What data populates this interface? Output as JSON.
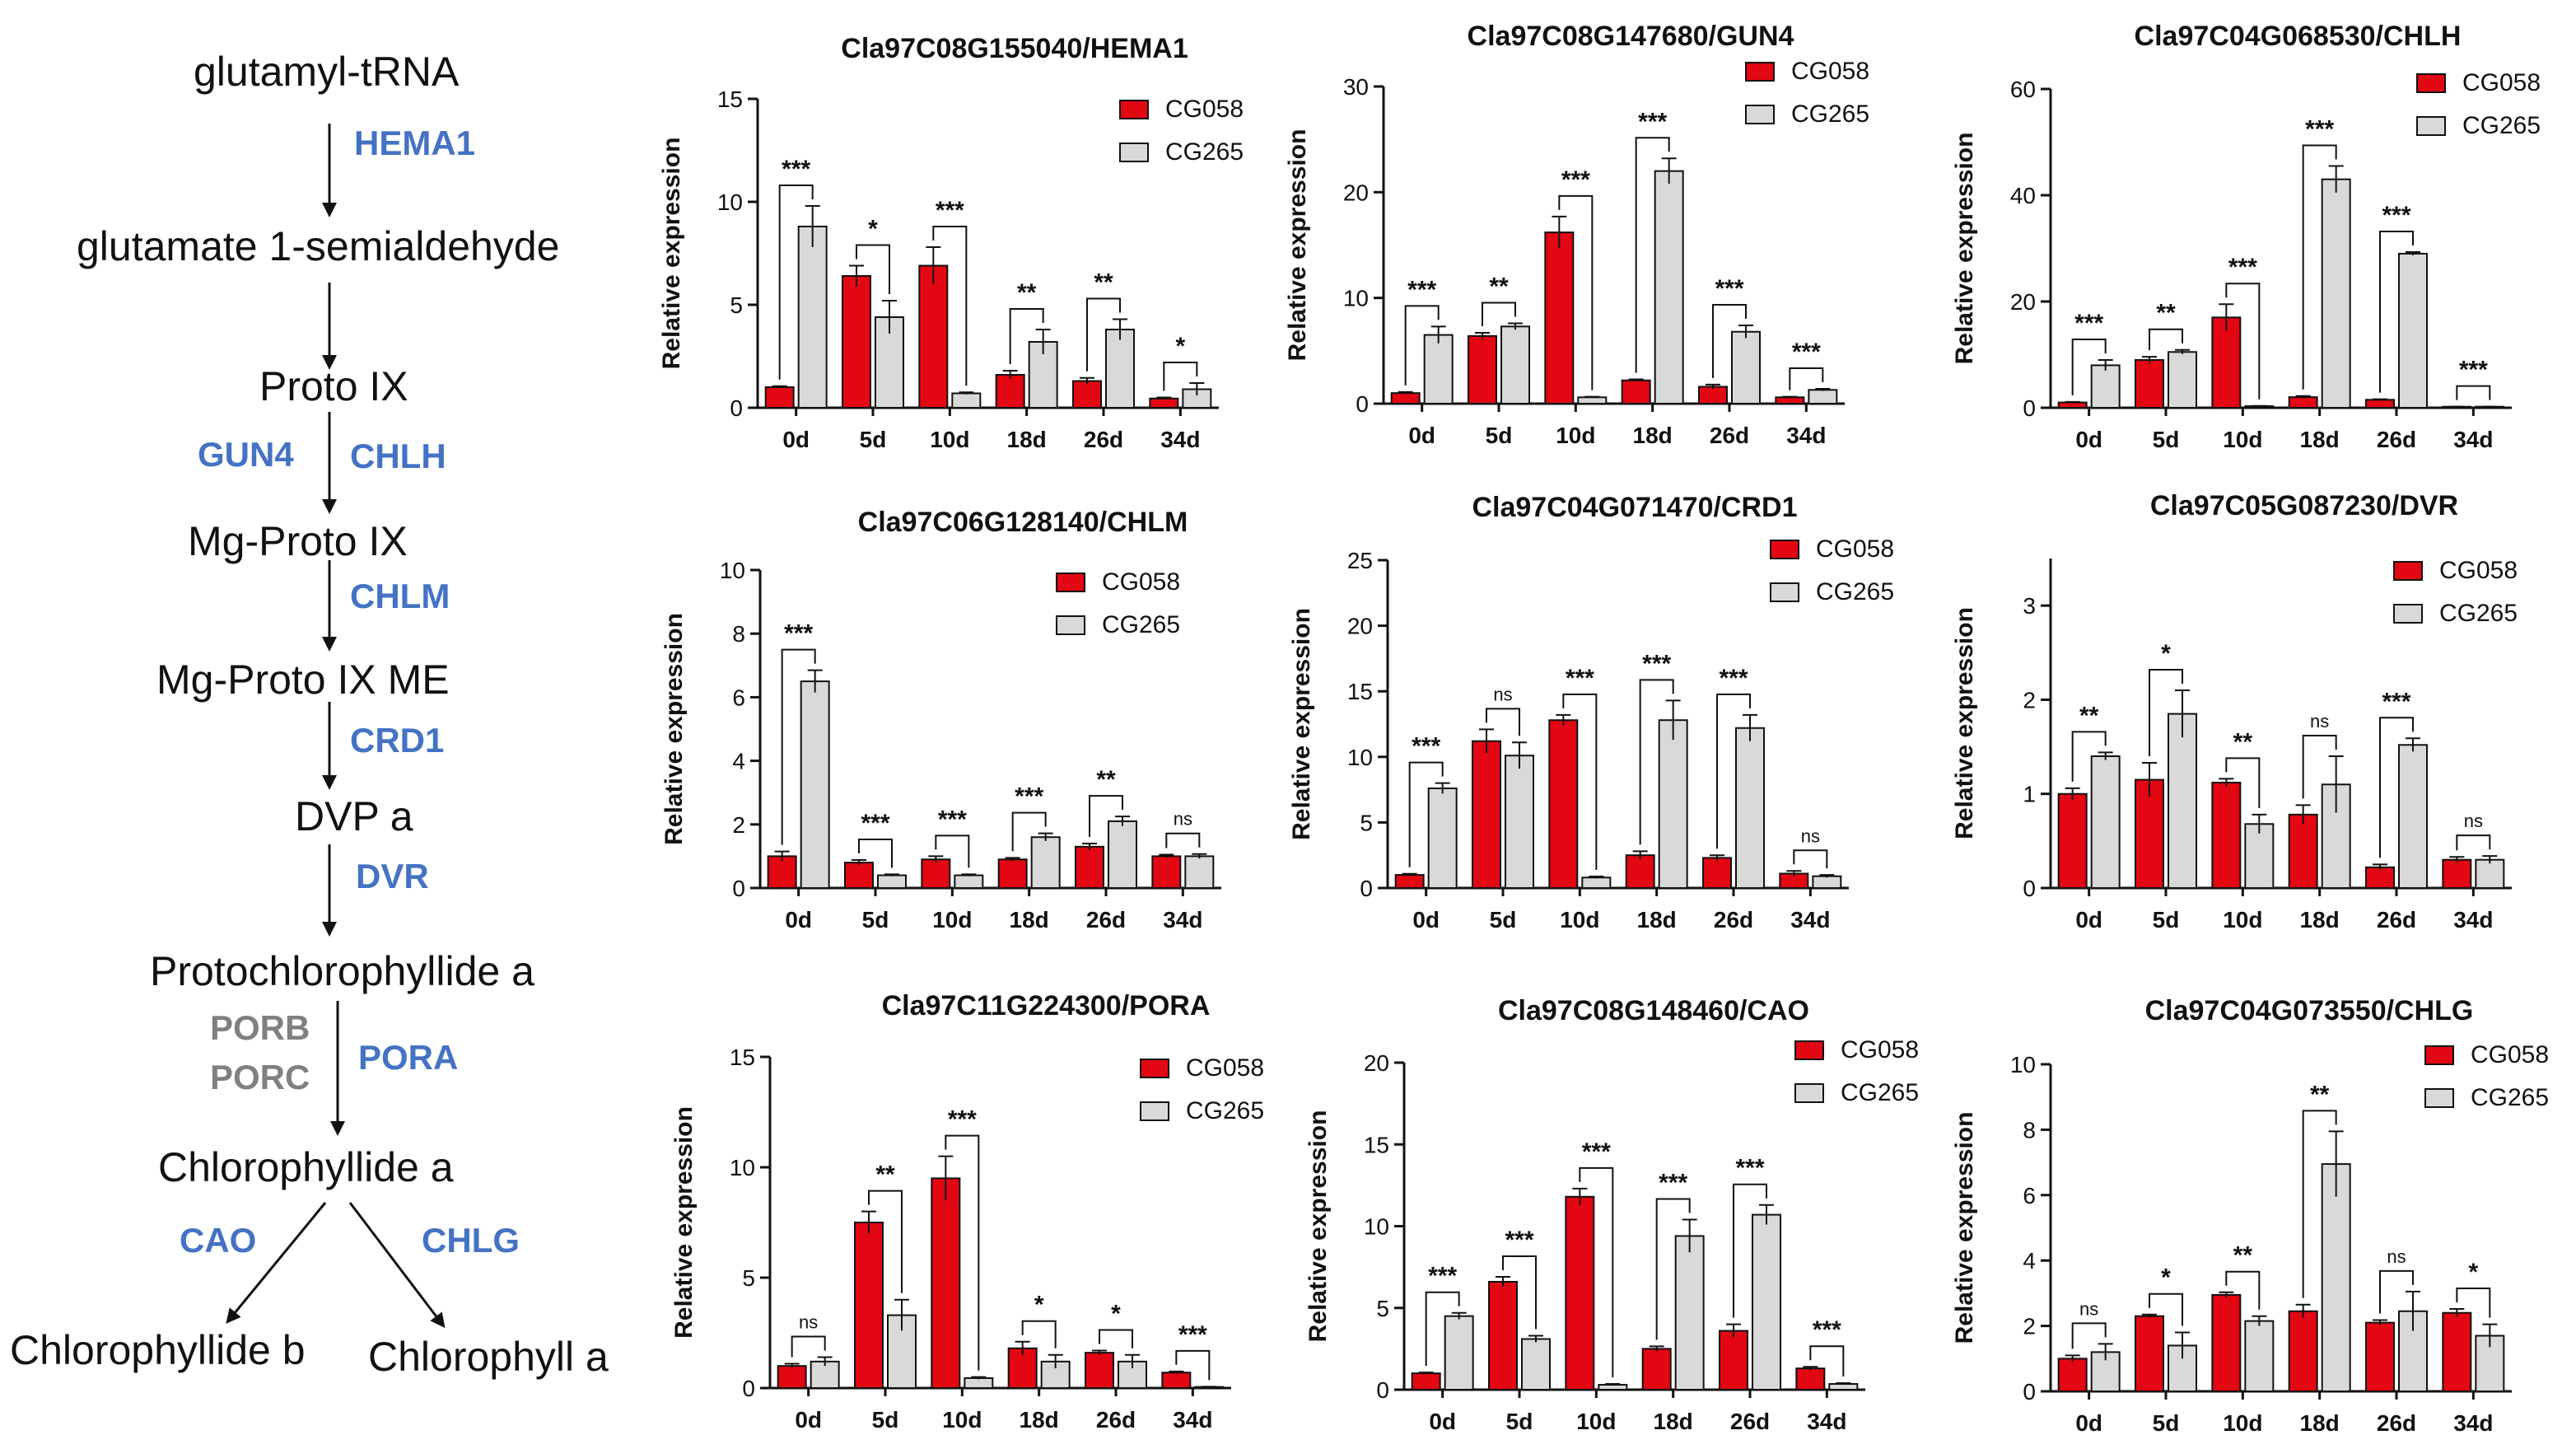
{
  "pathway": {
    "nodes": [
      "glutamyl-tRNA",
      "glutamate 1-semialdehyde",
      "Proto IX",
      "Mg-Proto IX",
      "Mg-Proto IX ME",
      "DVP a",
      "Protochlorophyllide a",
      "Chlorophyllide a",
      "Chlorophyllide b",
      "Chlorophyll a"
    ],
    "enzymes": {
      "hema1": "HEMA1",
      "gun4": "GUN4",
      "chlh": "CHLH",
      "chlm": "CHLM",
      "crd1": "CRD1",
      "dvr": "DVR",
      "porb": "PORB",
      "porc": "PORC",
      "pora": "PORA",
      "cao": "CAO",
      "chlg": "CHLG"
    },
    "colors": {
      "enzyme": "#4472C4",
      "inactive_enzyme": "#808080"
    }
  },
  "chart_data": [
    {
      "type": "bar",
      "title": "Cla97C08G155040/HEMA1",
      "ylabel": "Relative expression",
      "ylim": [
        0,
        15
      ],
      "yticks": [
        0,
        5,
        10,
        15
      ],
      "categories": [
        "0d",
        "5d",
        "10d",
        "18d",
        "26d",
        "34d"
      ],
      "series": [
        {
          "name": "CG058",
          "color": "#E30613",
          "values": [
            1,
            6.4,
            6.9,
            1.6,
            1.3,
            0.45
          ],
          "errors": [
            0.05,
            0.5,
            0.9,
            0.2,
            0.15,
            0.05
          ]
        },
        {
          "name": "CG265",
          "color": "#D9D9D9",
          "values": [
            8.8,
            4.4,
            0.7,
            3.2,
            3.8,
            0.9
          ],
          "errors": [
            1.0,
            0.8,
            0.05,
            0.6,
            0.5,
            0.3
          ]
        }
      ],
      "significance": [
        "***",
        "*",
        "***",
        "**",
        "**",
        "*"
      ]
    },
    {
      "type": "bar",
      "title": "Cla97C08G147680/GUN4",
      "ylabel": "Relative expression",
      "ylim": [
        0,
        30
      ],
      "yticks": [
        0,
        10,
        20,
        30
      ],
      "categories": [
        "0d",
        "5d",
        "10d",
        "18d",
        "26d",
        "34d"
      ],
      "series": [
        {
          "name": "CG058",
          "color": "#E30613",
          "values": [
            1,
            6.4,
            16.2,
            2.2,
            1.6,
            0.6
          ],
          "errors": [
            0.1,
            0.3,
            1.5,
            0.1,
            0.2,
            0.05
          ]
        },
        {
          "name": "CG265",
          "color": "#D9D9D9",
          "values": [
            6.5,
            7.3,
            0.6,
            22,
            6.8,
            1.3
          ],
          "errors": [
            0.8,
            0.3,
            0.05,
            1.2,
            0.6,
            0.1
          ]
        }
      ],
      "significance": [
        "***",
        "**",
        "***",
        "***",
        "***",
        "***"
      ]
    },
    {
      "type": "bar",
      "title": "Cla97C04G068530/CHLH",
      "ylabel": "Relative expression",
      "ylim": [
        0,
        60
      ],
      "yticks": [
        0,
        20,
        40,
        60
      ],
      "categories": [
        "0d",
        "5d",
        "10d",
        "18d",
        "26d",
        "34d"
      ],
      "series": [
        {
          "name": "CG058",
          "color": "#E30613",
          "values": [
            1,
            9,
            17,
            2,
            1.5,
            0.2
          ],
          "errors": [
            0.1,
            0.6,
            2.5,
            0.2,
            0.1,
            0.02
          ]
        },
        {
          "name": "CG265",
          "color": "#D9D9D9",
          "values": [
            8,
            10.5,
            0.3,
            43,
            29,
            0.2
          ],
          "errors": [
            1.0,
            0.4,
            0.05,
            2.5,
            0.3,
            0.02
          ]
        }
      ],
      "significance": [
        "***",
        "**",
        "***",
        "***",
        "***",
        "***"
      ]
    },
    {
      "type": "bar",
      "title": "Cla97C06G128140/CHLM",
      "ylabel": "Relative expression",
      "ylim": [
        0,
        10
      ],
      "yticks": [
        0,
        2,
        4,
        6,
        8,
        10
      ],
      "categories": [
        "0d",
        "5d",
        "10d",
        "18d",
        "26d",
        "34d"
      ],
      "series": [
        {
          "name": "CG058",
          "color": "#E30613",
          "values": [
            1,
            0.8,
            0.9,
            0.9,
            1.3,
            1
          ],
          "errors": [
            0.15,
            0.08,
            0.1,
            0.05,
            0.1,
            0.05
          ]
        },
        {
          "name": "CG265",
          "color": "#D9D9D9",
          "values": [
            6.5,
            0.4,
            0.4,
            1.6,
            2.1,
            1
          ],
          "errors": [
            0.35,
            0.03,
            0.03,
            0.12,
            0.15,
            0.07
          ]
        }
      ],
      "significance": [
        "***",
        "***",
        "***",
        "***",
        "**",
        "ns"
      ]
    },
    {
      "type": "bar",
      "title": "Cla97C04G071470/CRD1",
      "ylabel": "Relative expression",
      "ylim": [
        0,
        25
      ],
      "yticks": [
        0,
        5,
        10,
        15,
        20,
        25
      ],
      "categories": [
        "0d",
        "5d",
        "10d",
        "18d",
        "26d",
        "34d"
      ],
      "series": [
        {
          "name": "CG058",
          "color": "#E30613",
          "values": [
            1,
            11.2,
            12.8,
            2.5,
            2.3,
            1.1
          ],
          "errors": [
            0.08,
            0.9,
            0.4,
            0.3,
            0.2,
            0.2
          ]
        },
        {
          "name": "CG265",
          "color": "#D9D9D9",
          "values": [
            7.6,
            10.1,
            0.8,
            12.8,
            12.2,
            0.9
          ],
          "errors": [
            0.4,
            1.0,
            0.08,
            1.5,
            1.0,
            0.1
          ]
        }
      ],
      "significance": [
        "***",
        "ns",
        "***",
        "***",
        "***",
        "ns"
      ]
    },
    {
      "type": "bar",
      "title": "Cla97C05G087230/DVR",
      "ylabel": "Relative expression",
      "ylim": [
        0,
        3.5
      ],
      "yticks": [
        0,
        1,
        2,
        3
      ],
      "categories": [
        "0d",
        "5d",
        "10d",
        "18d",
        "26d",
        "34d"
      ],
      "series": [
        {
          "name": "CG058",
          "color": "#E30613",
          "values": [
            1,
            1.15,
            1.12,
            0.78,
            0.22,
            0.3
          ],
          "errors": [
            0.06,
            0.18,
            0.04,
            0.1,
            0.03,
            0.03
          ]
        },
        {
          "name": "CG265",
          "color": "#D9D9D9",
          "values": [
            1.4,
            1.85,
            0.68,
            1.1,
            1.52,
            0.3
          ],
          "errors": [
            0.04,
            0.25,
            0.1,
            0.3,
            0.07,
            0.04
          ]
        }
      ],
      "significance": [
        "**",
        "*",
        "**",
        "ns",
        "***",
        "ns"
      ]
    },
    {
      "type": "bar",
      "title": "Cla97C11G224300/PORA",
      "ylabel": "Relative expression",
      "ylim": [
        0,
        15
      ],
      "yticks": [
        0,
        5,
        10,
        15
      ],
      "categories": [
        "0d",
        "5d",
        "10d",
        "18d",
        "26d",
        "34d"
      ],
      "series": [
        {
          "name": "CG058",
          "color": "#E30613",
          "values": [
            1,
            7.5,
            9.5,
            1.8,
            1.6,
            0.7
          ],
          "errors": [
            0.1,
            0.5,
            1.0,
            0.3,
            0.1,
            0.05
          ]
        },
        {
          "name": "CG265",
          "color": "#D9D9D9",
          "values": [
            1.2,
            3.3,
            0.45,
            1.2,
            1.2,
            0.05
          ],
          "errors": [
            0.2,
            0.7,
            0.05,
            0.3,
            0.3,
            0.01
          ]
        }
      ],
      "significance": [
        "ns",
        "**",
        "***",
        "*",
        "*",
        "***"
      ]
    },
    {
      "type": "bar",
      "title": "Cla97C08G148460/CAO",
      "ylabel": "Relative expression",
      "ylim": [
        0,
        20
      ],
      "yticks": [
        0,
        5,
        10,
        15,
        20
      ],
      "categories": [
        "0d",
        "5d",
        "10d",
        "18d",
        "26d",
        "34d"
      ],
      "series": [
        {
          "name": "CG058",
          "color": "#E30613",
          "values": [
            1,
            6.6,
            11.8,
            2.5,
            3.6,
            1.3
          ],
          "errors": [
            0.05,
            0.3,
            0.5,
            0.15,
            0.4,
            0.1
          ]
        },
        {
          "name": "CG265",
          "color": "#D9D9D9",
          "values": [
            4.5,
            3.1,
            0.3,
            9.4,
            10.7,
            0.35
          ],
          "errors": [
            0.2,
            0.2,
            0.05,
            1.0,
            0.6,
            0.05
          ]
        }
      ],
      "significance": [
        "***",
        "***",
        "***",
        "***",
        "***",
        "***"
      ]
    },
    {
      "type": "bar",
      "title": "Cla97C04G073550/CHLG",
      "ylabel": "Relative expression",
      "ylim": [
        0,
        10
      ],
      "yticks": [
        0,
        2,
        4,
        6,
        8,
        10
      ],
      "categories": [
        "0d",
        "5d",
        "10d",
        "18d",
        "26d",
        "34d"
      ],
      "series": [
        {
          "name": "CG058",
          "color": "#E30613",
          "values": [
            1,
            2.3,
            2.95,
            2.45,
            2.1,
            2.4
          ],
          "errors": [
            0.1,
            0.05,
            0.08,
            0.2,
            0.08,
            0.12
          ]
        },
        {
          "name": "CG265",
          "color": "#D9D9D9",
          "values": [
            1.2,
            1.4,
            2.15,
            6.95,
            2.45,
            1.7
          ],
          "errors": [
            0.25,
            0.4,
            0.15,
            1.0,
            0.6,
            0.35
          ]
        }
      ],
      "significance": [
        "ns",
        "*",
        "**",
        "**",
        "ns",
        "*"
      ]
    }
  ]
}
